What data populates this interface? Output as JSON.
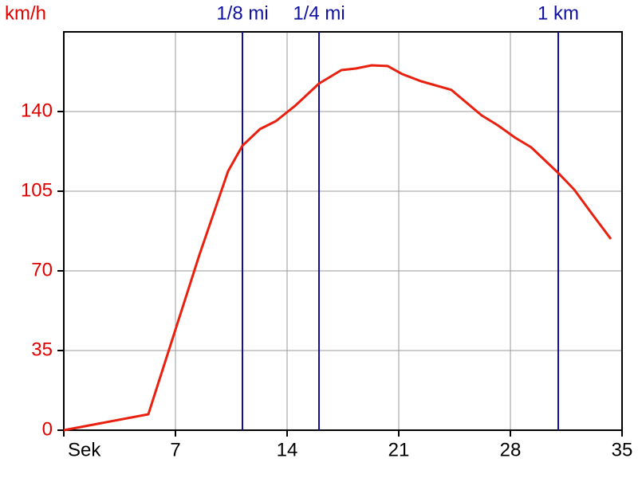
{
  "chart_data": {
    "type": "line",
    "y_label": "km/h",
    "x": [
      0,
      5.3,
      6.9,
      8.5,
      10.3,
      11.2,
      12.3,
      13.3,
      14.5,
      16.0,
      17.4,
      18.3,
      19.3,
      20.3,
      21.2,
      22.4,
      24.3,
      26.2,
      27.2,
      28.3,
      29.3,
      31.0,
      32.0,
      33.1,
      34.3
    ],
    "series": [
      {
        "color": "#e8200f",
        "values": [
          0,
          7,
          42,
          77,
          113.8,
          125,
          132.3,
          135.8,
          142.5,
          152.3,
          158.2,
          158.9,
          160.3,
          160,
          156.5,
          153.3,
          149.5,
          138.3,
          134,
          128.5,
          124.3,
          113,
          105.7,
          95.2,
          84
        ]
      }
    ],
    "xlim": [
      0,
      35
    ],
    "ylim": [
      0,
      175
    ],
    "xticks": [
      {
        "value": 0,
        "label": "Sek"
      },
      7,
      14,
      21,
      28,
      35
    ],
    "yticks": [
      0,
      35,
      70,
      105,
      140
    ],
    "grid": true,
    "markers": [
      {
        "label": "1/8 mi",
        "x": 11.2
      },
      {
        "label": "1/4 mi",
        "x": 16.0
      },
      {
        "label": "1 km",
        "x": 31.0
      }
    ],
    "marker_color": "#1010a0",
    "ytick_color": "#e00000"
  }
}
